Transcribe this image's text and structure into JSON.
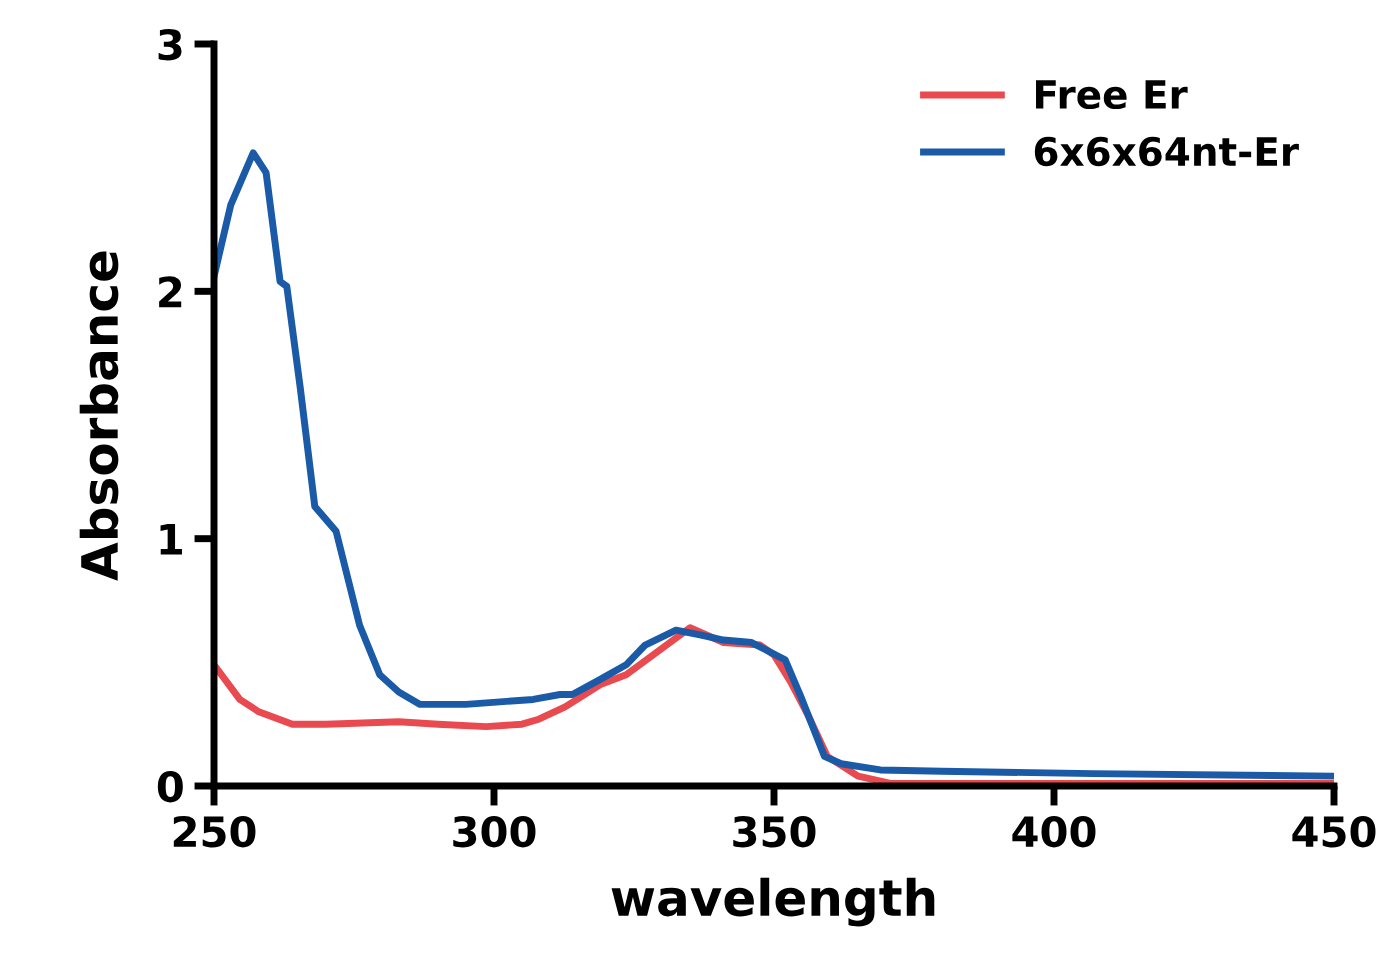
{
  "chart_data": {
    "type": "line",
    "xlabel": "wavelength",
    "ylabel": "Absorbance",
    "xlim": [
      250,
      450
    ],
    "ylim": [
      0,
      3
    ],
    "xticks": [
      250,
      300,
      350,
      400,
      450
    ],
    "yticks": [
      0,
      1,
      2,
      3
    ],
    "grid": false,
    "legend": "top right",
    "marker": "none",
    "line_style": "solid",
    "series": [
      {
        "name": "Free Er",
        "color": "#e84a50",
        "x": [
          250,
          254.6,
          258,
          264,
          270,
          283,
          290,
          298.6,
          305,
          308,
          312.7,
          319,
          323.6,
          329,
          335,
          341,
          347.5,
          350,
          353,
          356,
          359.5,
          365,
          371,
          380,
          400,
          450
        ],
        "values": [
          0.49,
          0.35,
          0.3,
          0.25,
          0.25,
          0.26,
          0.25,
          0.24,
          0.25,
          0.27,
          0.32,
          0.41,
          0.45,
          0.54,
          0.64,
          0.58,
          0.57,
          0.53,
          0.42,
          0.29,
          0.12,
          0.04,
          0.01,
          0.01,
          0.01,
          0.01
        ]
      },
      {
        "name": "6x6x64nt-Er",
        "color": "#1a5aa6",
        "x": [
          250,
          253,
          257,
          259.3,
          261.8,
          263,
          265.4,
          268,
          271.8,
          276,
          279.6,
          283,
          286.8,
          295,
          307,
          311.8,
          314,
          318.9,
          323.6,
          327,
          332.5,
          337,
          341,
          346,
          352,
          355,
          359,
          362,
          369,
          380,
          407,
          450
        ],
        "values": [
          2.06,
          2.35,
          2.56,
          2.48,
          2.04,
          2.02,
          1.61,
          1.13,
          1.03,
          0.65,
          0.45,
          0.38,
          0.33,
          0.33,
          0.35,
          0.37,
          0.37,
          0.43,
          0.49,
          0.57,
          0.63,
          0.61,
          0.59,
          0.58,
          0.51,
          0.35,
          0.12,
          0.09,
          0.065,
          0.06,
          0.05,
          0.04
        ]
      }
    ]
  }
}
